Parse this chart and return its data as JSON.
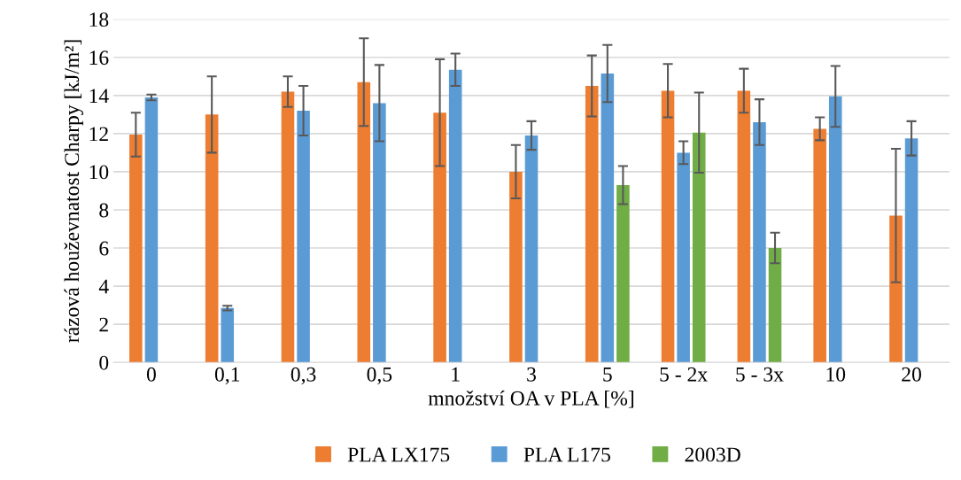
{
  "chart_data": {
    "type": "bar",
    "xlabel": "množství OA v PLA [%]",
    "ylabel": "rázová houževnatost Charpy [kJ/m²]",
    "categories": [
      "0",
      "0,1",
      "0,3",
      "0,5",
      "1",
      "3",
      "5",
      "5 - 2x",
      "5 - 3x",
      "10",
      "20"
    ],
    "series": [
      {
        "name": "PLA LX175",
        "color": "#ed7d31",
        "values": [
          11.95,
          13.0,
          14.2,
          14.7,
          13.1,
          10.0,
          14.5,
          14.25,
          14.25,
          12.25,
          7.7
        ],
        "errors": [
          1.15,
          2.0,
          0.8,
          2.3,
          2.8,
          1.4,
          1.6,
          1.4,
          1.15,
          0.6,
          3.5
        ]
      },
      {
        "name": "PLA L175",
        "color": "#5b9bd5",
        "values": [
          13.9,
          2.85,
          13.2,
          13.6,
          15.35,
          11.9,
          15.15,
          11.0,
          12.6,
          13.95,
          11.75
        ],
        "errors": [
          0.15,
          0.12,
          1.3,
          2.0,
          0.85,
          0.75,
          1.5,
          0.6,
          1.2,
          1.6,
          0.9
        ]
      },
      {
        "name": "2003D",
        "color": "#70ad47",
        "values": [
          null,
          null,
          null,
          null,
          null,
          null,
          9.3,
          12.05,
          6.0,
          null,
          null
        ],
        "errors": [
          null,
          null,
          null,
          null,
          null,
          null,
          1.0,
          2.1,
          0.8,
          null,
          null
        ]
      }
    ],
    "ylim": [
      0,
      18
    ],
    "yticks": [
      0,
      2,
      4,
      6,
      8,
      10,
      12,
      14,
      16,
      18
    ],
    "grid": "y",
    "legend": "bottom"
  }
}
